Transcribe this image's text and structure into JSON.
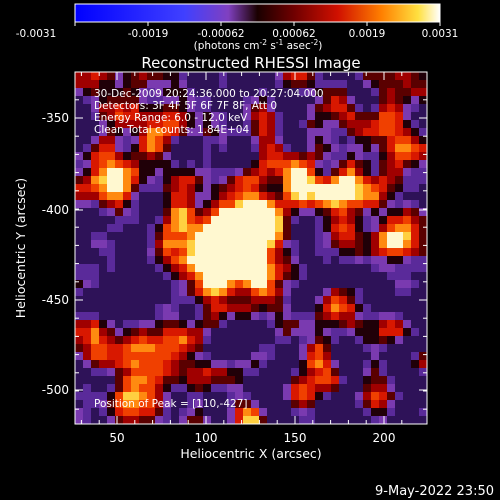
{
  "colorbar": {
    "ticks": [
      "-0.0031",
      "-0.0019",
      "-0.00062",
      "0.00062",
      "0.0019",
      "0.0031"
    ],
    "units_prefix": "(photons cm",
    "units_exp1": "-2",
    "units_mid": " s",
    "units_exp2": "-1",
    "units_mid2": " asec",
    "units_exp3": "-2",
    "units_suffix": ")"
  },
  "plot": {
    "title": "Reconstructed RHESSI Image",
    "xlabel": "Heliocentric X (arcsec)",
    "ylabel": "Heliocentric Y (arcsec)",
    "xticks": [
      "50",
      "100",
      "150",
      "200"
    ],
    "yticks": [
      "-350",
      "-400",
      "-450",
      "-500"
    ],
    "info": [
      "30-Dec-2009 20:24:36.000 to 20:27:04.000",
      "Detectors: 3F 4F 5F 6F 7F 8F, Att 0",
      "Energy Range: 6.0 - 12.0 keV",
      "Clean     Total counts: 1.84E+04"
    ],
    "peak": "Position of Peak = [110,-427]"
  },
  "footer": {
    "timestamp": "9-May-2022 23:50"
  }
}
